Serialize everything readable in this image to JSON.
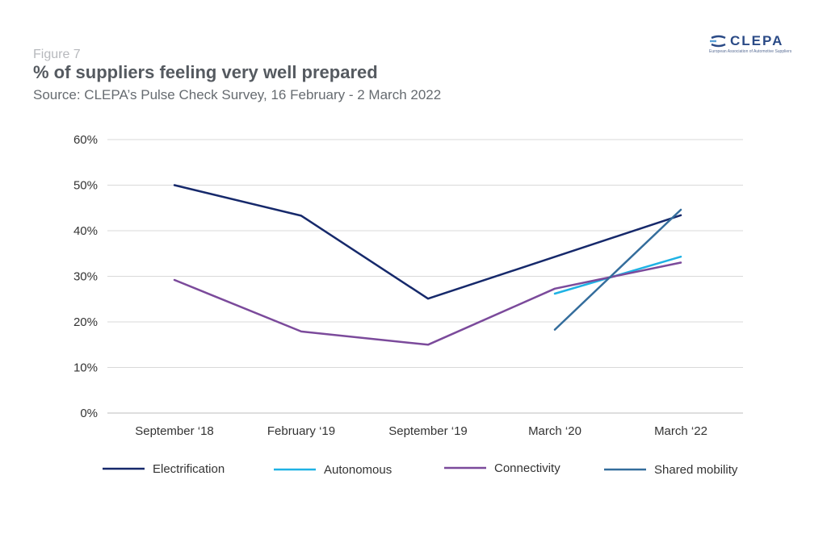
{
  "header": {
    "figure_label": "Figure 7",
    "title": "% of suppliers feeling very well prepared",
    "subtitle": "Source: CLEPA’s Pulse Check Survey,  16 February - 2 March 2022"
  },
  "logo": {
    "name": "CLEPA",
    "tagline": "European Association of Automotive Suppliers"
  },
  "chart_data": {
    "type": "line",
    "categories": [
      "September ‘18",
      "February ‘19",
      "September ‘19",
      "March ‘20",
      "March ‘22"
    ],
    "y_ticks": [
      "0%",
      "10%",
      "20%",
      "30%",
      "40%",
      "50%",
      "60%"
    ],
    "ylim": [
      0,
      60
    ],
    "grid": "horizontal",
    "legend_position": "bottom",
    "series": [
      {
        "name": "Electrification",
        "color": "#16296b",
        "values": [
          50,
          43.3,
          25.1,
          null,
          43.4
        ]
      },
      {
        "name": "Autonomous",
        "color": "#1fb2e4",
        "values": [
          null,
          null,
          null,
          26.2,
          34.3
        ]
      },
      {
        "name": "Connectivity",
        "color": "#7b4a9b",
        "values": [
          29.2,
          17.9,
          15.0,
          27.3,
          33.0
        ]
      },
      {
        "name": "Shared mobility",
        "color": "#346d9c",
        "values": [
          null,
          null,
          null,
          18.3,
          44.6
        ]
      }
    ]
  }
}
